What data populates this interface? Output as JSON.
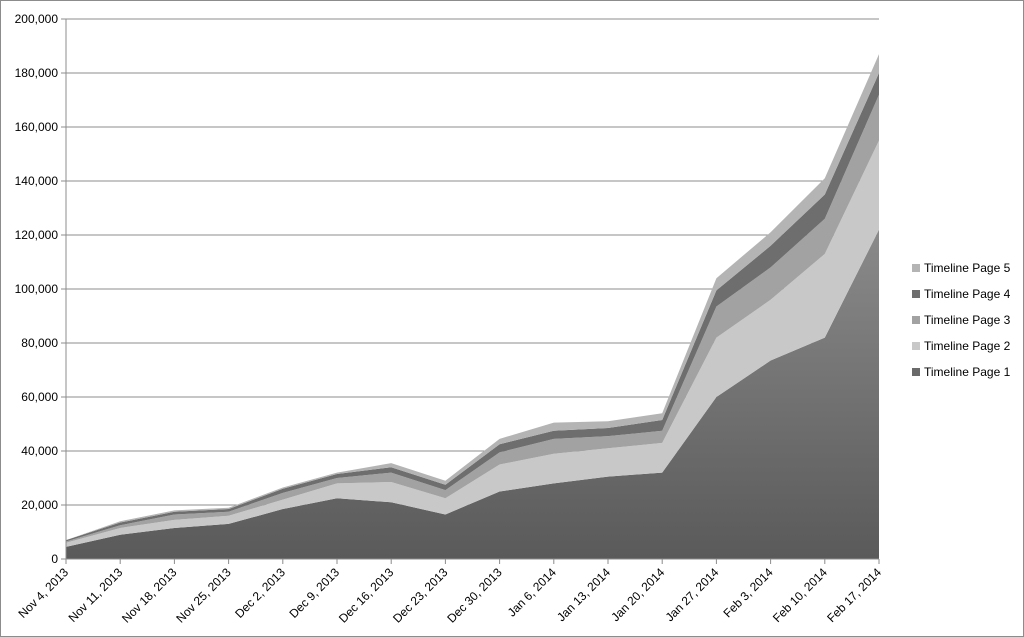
{
  "chart_data": {
    "type": "area",
    "stacked": true,
    "title": "",
    "xlabel": "",
    "ylabel": "",
    "ylim": [
      0,
      200000
    ],
    "yticks": [
      "0",
      "20,000",
      "40,000",
      "60,000",
      "80,000",
      "100,000",
      "120,000",
      "140,000",
      "160,000",
      "180,000",
      "200,000"
    ],
    "grid": true,
    "legend_position": "right",
    "categories": [
      "Nov 4, 2013",
      "Nov 11, 2013",
      "Nov 18, 2013",
      "Nov 25, 2013",
      "Dec 2, 2013",
      "Dec 9, 2013",
      "Dec 16, 2013",
      "Dec 23, 2013",
      "Dec 30, 2013",
      "Jan 6, 2014",
      "Jan 13, 2014",
      "Jan 20, 2014",
      "Jan 27, 2014",
      "Feb 3, 2014",
      "Feb 10, 2014",
      "Feb 17, 2014"
    ],
    "series": [
      {
        "name": "Timeline Page 1",
        "color": "#6a6a6a",
        "values": [
          4500,
          9000,
          11500,
          13000,
          18500,
          22500,
          21000,
          16500,
          25000,
          28000,
          30500,
          32000,
          60000,
          73500,
          82000,
          122000
        ]
      },
      {
        "name": "Timeline Page 2",
        "color": "#c8c8c8",
        "values": [
          1500,
          2500,
          3000,
          3000,
          3500,
          5500,
          7500,
          6000,
          10000,
          11000,
          10500,
          11000,
          22000,
          22500,
          31000,
          33000
        ]
      },
      {
        "name": "Timeline Page 3",
        "color": "#a2a2a2",
        "values": [
          500,
          1000,
          2000,
          1500,
          2500,
          2000,
          3500,
          3000,
          4500,
          5500,
          4500,
          4500,
          11500,
          12000,
          13000,
          17000
        ]
      },
      {
        "name": "Timeline Page 4",
        "color": "#6e6e6e",
        "values": [
          500,
          1000,
          1000,
          1000,
          1500,
          1500,
          2000,
          2000,
          3000,
          3000,
          3000,
          4000,
          6000,
          8000,
          9000,
          8000
        ]
      },
      {
        "name": "Timeline Page 5",
        "color": "#b4b4b4",
        "values": [
          0,
          500,
          500,
          500,
          500,
          500,
          1500,
          1500,
          2000,
          3000,
          2500,
          2500,
          4500,
          5000,
          6000,
          7000
        ]
      }
    ]
  }
}
